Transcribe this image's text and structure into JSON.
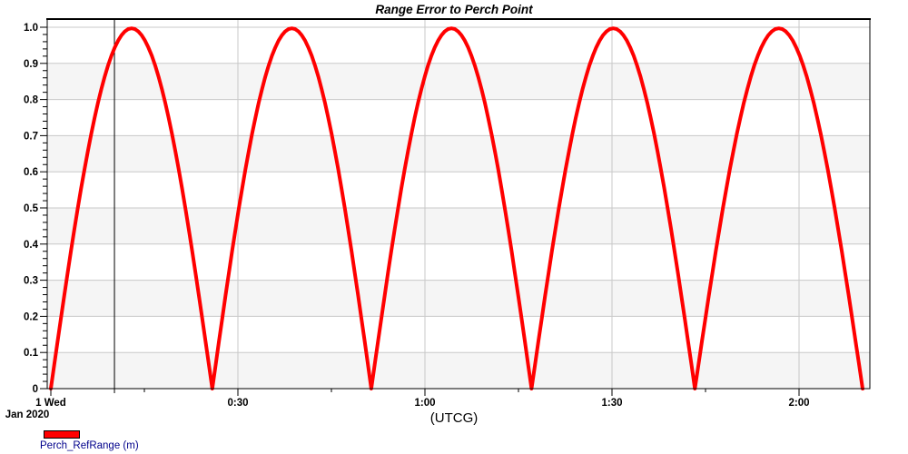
{
  "window": {
    "background": "#ffffff"
  },
  "chart": {
    "title": "Range Error to Perch Point",
    "xlabel": "(UTCG)",
    "legend": {
      "label": "Perch_RefRange (m)",
      "swatch_color": "#ff0000"
    }
  },
  "chart_data": {
    "type": "line",
    "title": "Range Error to Perch Point",
    "xlabel": "(UTCG)",
    "ylabel": "",
    "x_axis": {
      "unit": "UTCG time of day, minutes from 2020-01-01 00:00",
      "ticks": [
        {
          "t_min": 0,
          "label": "1 Wed",
          "sublabel": "Jan 2020"
        },
        {
          "t_min": 30,
          "label": "0:30"
        },
        {
          "t_min": 60,
          "label": "1:00"
        },
        {
          "t_min": 90,
          "label": "1:30"
        },
        {
          "t_min": 120,
          "label": "2:00"
        }
      ],
      "minor_ticks_min": [
        15,
        45,
        75,
        105
      ],
      "gridlines_at_min": [
        30,
        60,
        90,
        120
      ],
      "range_min": [
        -0.6,
        131.3
      ]
    },
    "y_axis": {
      "ticks": [
        {
          "v": 1.0,
          "label": "1.0"
        },
        {
          "v": 0.9,
          "label": "0.9"
        },
        {
          "v": 0.8,
          "label": "0.8"
        },
        {
          "v": 0.7,
          "label": "0.7"
        },
        {
          "v": 0.6,
          "label": "0.6"
        },
        {
          "v": 0.5,
          "label": "0.5"
        },
        {
          "v": 0.4,
          "label": "0.4"
        },
        {
          "v": 0.3,
          "label": "0.3"
        },
        {
          "v": 0.2,
          "label": "0.2"
        },
        {
          "v": 0.1,
          "label": "0.1"
        },
        {
          "v": 0,
          "label": "0"
        }
      ],
      "gridlines_at": [
        0.1,
        0.2,
        0.3,
        0.4,
        0.5,
        0.6,
        0.7,
        0.8,
        0.9,
        1.0
      ],
      "minor_step": 0.02,
      "range": [
        0,
        1.023
      ]
    },
    "series": [
      {
        "name": "Perch_RefRange (m)",
        "color": "#ff0000",
        "line_width": 4,
        "shape": "abs_sine_arcs",
        "zero_crossings_min": [
          0,
          25.9,
          51.4,
          77.1,
          103.3,
          130.2
        ],
        "peak_value": 0.997,
        "points": [
          [
            0,
            0
          ],
          [
            2.6,
            0.308
          ],
          [
            5.2,
            0.586
          ],
          [
            7.8,
            0.807
          ],
          [
            10.4,
            0.948
          ],
          [
            13.0,
            0.997
          ],
          [
            15.5,
            0.948
          ],
          [
            18.1,
            0.807
          ],
          [
            20.7,
            0.586
          ],
          [
            23.3,
            0.308
          ],
          [
            25.9,
            0
          ],
          [
            28.5,
            0.308
          ],
          [
            31.0,
            0.586
          ],
          [
            33.6,
            0.807
          ],
          [
            36.1,
            0.948
          ],
          [
            38.7,
            0.997
          ],
          [
            41.2,
            0.948
          ],
          [
            43.8,
            0.807
          ],
          [
            46.3,
            0.586
          ],
          [
            48.9,
            0.308
          ],
          [
            51.4,
            0
          ],
          [
            54.0,
            0.308
          ],
          [
            56.5,
            0.586
          ],
          [
            59.1,
            0.807
          ],
          [
            61.7,
            0.948
          ],
          [
            64.3,
            0.997
          ],
          [
            66.8,
            0.948
          ],
          [
            69.4,
            0.807
          ],
          [
            72.0,
            0.586
          ],
          [
            74.5,
            0.308
          ],
          [
            77.1,
            0
          ],
          [
            79.7,
            0.308
          ],
          [
            82.3,
            0.586
          ],
          [
            85.0,
            0.807
          ],
          [
            87.6,
            0.948
          ],
          [
            90.2,
            0.997
          ],
          [
            92.8,
            0.948
          ],
          [
            95.4,
            0.807
          ],
          [
            98.1,
            0.586
          ],
          [
            100.7,
            0.308
          ],
          [
            103.3,
            0
          ],
          [
            106.0,
            0.308
          ],
          [
            108.7,
            0.586
          ],
          [
            111.4,
            0.807
          ],
          [
            114.1,
            0.948
          ],
          [
            116.8,
            0.997
          ],
          [
            119.4,
            0.948
          ],
          [
            122.1,
            0.807
          ],
          [
            124.8,
            0.586
          ],
          [
            127.5,
            0.308
          ],
          [
            130.2,
            0
          ]
        ]
      }
    ],
    "cursor_line_min": 10.2,
    "legend": {
      "position": "bottom-left",
      "entries": [
        "Perch_RefRange (m)"
      ]
    },
    "grid": true,
    "style": {
      "band_colors": [
        "#f5f5f5",
        "#ffffff"
      ],
      "grid_color": "#c8c8c8",
      "axis_color": "#000000",
      "cursor_color": "#000000",
      "legend_text_color": "#00008b",
      "tick_label_color": "#000000"
    }
  }
}
